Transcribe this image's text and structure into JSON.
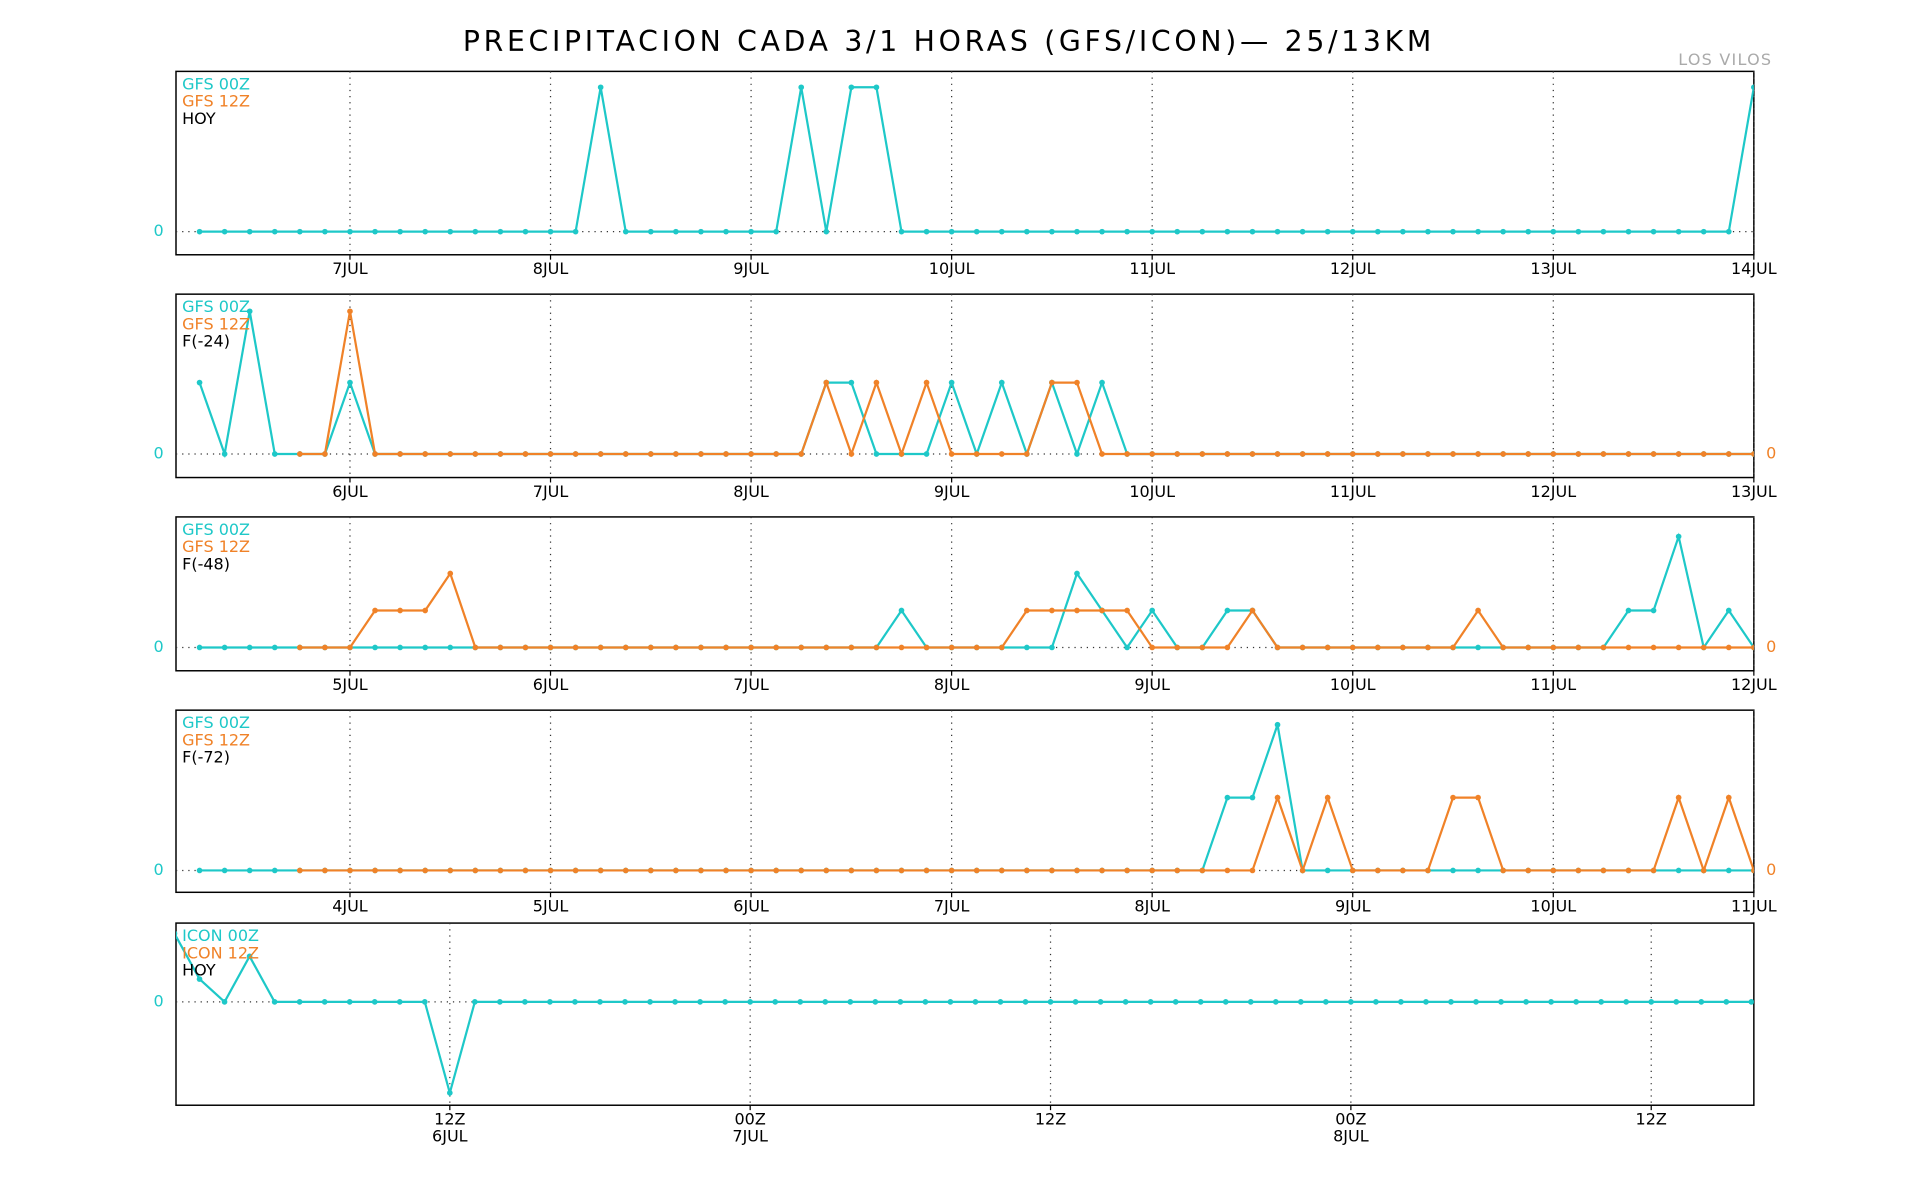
{
  "title": "PRECIPITACION CADA 3/1 HORAS (GFS/ICON)— 25/13KM",
  "subtitle": "LOS VILOS",
  "chart_data": [
    {
      "type": "line",
      "label": "HOY",
      "xlim": [
        -0.94,
        62
      ],
      "ylim": [
        -0.16,
        1.11
      ],
      "yticks": [
        0
      ],
      "xticks": [
        {
          "value": 6,
          "label": "7JUL"
        },
        {
          "value": 14,
          "label": "8JUL"
        },
        {
          "value": 22,
          "label": "9JUL"
        },
        {
          "value": 30,
          "label": "10JUL"
        },
        {
          "value": 38,
          "label": "11JUL"
        },
        {
          "value": 46,
          "label": "12JUL"
        },
        {
          "value": 54,
          "label": "13JUL"
        },
        {
          "value": 62,
          "label": "14JUL"
        }
      ],
      "grid": true,
      "series": [
        {
          "name": "GFS 00Z",
          "color": "#1ec8c8",
          "values": [
            0,
            0,
            0,
            0,
            0,
            0,
            0,
            0,
            0,
            0,
            0,
            0,
            0,
            0,
            0,
            0,
            1,
            0,
            0,
            0,
            0,
            0,
            0,
            0,
            1,
            0,
            1,
            1,
            0,
            0,
            0,
            0,
            0,
            0,
            0,
            0,
            0,
            0,
            0,
            0,
            0,
            0,
            0,
            0,
            0,
            0,
            0,
            0,
            0,
            0,
            0,
            0,
            0,
            0,
            0,
            0,
            0,
            0,
            0,
            0,
            0,
            0,
            1
          ]
        },
        {
          "name": "GFS 12Z",
          "color": "#f08228",
          "values": [
            null,
            null,
            null,
            null,
            null,
            null,
            null,
            null,
            null,
            null,
            null,
            null,
            null,
            null,
            null,
            null,
            null,
            null,
            null,
            null,
            null,
            null,
            null,
            null,
            null,
            null,
            null,
            null,
            null,
            null,
            null,
            null,
            null,
            null,
            null,
            null,
            null,
            null,
            null,
            null,
            null,
            null,
            null,
            null,
            null,
            null,
            null,
            null,
            null,
            null,
            null,
            null,
            null,
            null,
            null,
            null,
            null,
            null,
            null,
            null,
            null,
            null,
            null
          ]
        }
      ]
    },
    {
      "type": "line",
      "label": "F(-24)",
      "xlim": [
        -0.94,
        62
      ],
      "ylim": [
        -0.33,
        2.24
      ],
      "yticks": [
        0
      ],
      "y2lim": [
        -0.33,
        2.24
      ],
      "y2ticks": [
        0
      ],
      "xticks": [
        {
          "value": 6,
          "label": "6JUL"
        },
        {
          "value": 14,
          "label": "7JUL"
        },
        {
          "value": 22,
          "label": "8JUL"
        },
        {
          "value": 30,
          "label": "9JUL"
        },
        {
          "value": 38,
          "label": "10JUL"
        },
        {
          "value": 46,
          "label": "11JUL"
        },
        {
          "value": 54,
          "label": "12JUL"
        },
        {
          "value": 62,
          "label": "13JUL"
        }
      ],
      "grid": true,
      "series": [
        {
          "name": "GFS 00Z",
          "color": "#1ec8c8",
          "values": [
            1,
            0,
            2,
            0,
            0,
            0,
            1,
            0,
            0,
            0,
            0,
            0,
            0,
            0,
            0,
            0,
            0,
            0,
            0,
            0,
            0,
            0,
            0,
            0,
            0,
            1,
            1,
            0,
            0,
            0,
            1,
            0,
            1,
            0,
            1,
            0,
            1,
            0,
            0,
            0,
            0,
            0,
            0,
            0,
            0,
            0,
            0,
            0,
            0,
            0,
            0,
            0,
            0,
            0,
            0,
            0,
            0,
            0,
            0,
            0,
            0,
            0,
            0
          ]
        },
        {
          "name": "GFS 12Z",
          "color": "#f08228",
          "axis": "y2",
          "values": [
            null,
            null,
            null,
            null,
            0,
            0,
            2,
            0,
            0,
            0,
            0,
            0,
            0,
            0,
            0,
            0,
            0,
            0,
            0,
            0,
            0,
            0,
            0,
            0,
            0,
            1,
            0,
            1,
            0,
            1,
            0,
            0,
            0,
            0,
            1,
            1,
            0,
            0,
            0,
            0,
            0,
            0,
            0,
            0,
            0,
            0,
            0,
            0,
            0,
            0,
            0,
            0,
            0,
            0,
            0,
            0,
            0,
            0,
            0,
            0,
            0,
            0,
            0
          ]
        }
      ]
    },
    {
      "type": "line",
      "label": "F(-48)",
      "xlim": [
        -0.94,
        62
      ],
      "ylim": [
        -0.63,
        3.53
      ],
      "yticks": [
        0
      ],
      "y2lim": [
        -0.63,
        3.53
      ],
      "y2ticks": [
        0
      ],
      "xticks": [
        {
          "value": 6,
          "label": "5JUL"
        },
        {
          "value": 14,
          "label": "6JUL"
        },
        {
          "value": 22,
          "label": "7JUL"
        },
        {
          "value": 30,
          "label": "8JUL"
        },
        {
          "value": 38,
          "label": "9JUL"
        },
        {
          "value": 46,
          "label": "10JUL"
        },
        {
          "value": 54,
          "label": "11JUL"
        },
        {
          "value": 62,
          "label": "12JUL"
        }
      ],
      "grid": true,
      "series": [
        {
          "name": "GFS 00Z",
          "color": "#1ec8c8",
          "values": [
            0,
            0,
            0,
            0,
            0,
            0,
            0,
            0,
            0,
            0,
            0,
            0,
            0,
            0,
            0,
            0,
            0,
            0,
            0,
            0,
            0,
            0,
            0,
            0,
            0,
            0,
            0,
            0,
            1,
            0,
            0,
            0,
            0,
            0,
            0,
            2,
            1,
            0,
            1,
            0,
            0,
            1,
            1,
            0,
            0,
            0,
            0,
            0,
            0,
            0,
            0,
            0,
            0,
            0,
            0,
            0,
            0,
            1,
            1,
            3,
            0,
            1,
            0
          ]
        },
        {
          "name": "GFS 12Z",
          "color": "#f08228",
          "axis": "y2",
          "values": [
            null,
            null,
            null,
            null,
            0,
            0,
            0,
            1,
            1,
            1,
            2,
            0,
            0,
            0,
            0,
            0,
            0,
            0,
            0,
            0,
            0,
            0,
            0,
            0,
            0,
            0,
            0,
            0,
            0,
            0,
            0,
            0,
            0,
            1,
            1,
            1,
            1,
            1,
            0,
            0,
            0,
            0,
            1,
            0,
            0,
            0,
            0,
            0,
            0,
            0,
            0,
            1,
            0,
            0,
            0,
            0,
            0,
            0,
            0,
            0,
            0,
            0,
            0
          ]
        }
      ]
    },
    {
      "type": "line",
      "label": "F(-72)",
      "xlim": [
        -0.94,
        62
      ],
      "ylim": [
        -0.3,
        2.2
      ],
      "yticks": [
        0
      ],
      "y2lim": [
        -0.3,
        2.2
      ],
      "y2ticks": [
        0
      ],
      "xticks": [
        {
          "value": 6,
          "label": "4JUL"
        },
        {
          "value": 14,
          "label": "5JUL"
        },
        {
          "value": 22,
          "label": "6JUL"
        },
        {
          "value": 30,
          "label": "7JUL"
        },
        {
          "value": 38,
          "label": "8JUL"
        },
        {
          "value": 46,
          "label": "9JUL"
        },
        {
          "value": 54,
          "label": "10JUL"
        },
        {
          "value": 62,
          "label": "11JUL"
        }
      ],
      "grid": true,
      "series": [
        {
          "name": "GFS 00Z",
          "color": "#1ec8c8",
          "values": [
            0,
            0,
            0,
            0,
            0,
            0,
            0,
            0,
            0,
            0,
            0,
            0,
            0,
            0,
            0,
            0,
            0,
            0,
            0,
            0,
            0,
            0,
            0,
            0,
            0,
            0,
            0,
            0,
            0,
            0,
            0,
            0,
            0,
            0,
            0,
            0,
            0,
            0,
            0,
            0,
            0,
            1,
            1,
            2,
            0,
            0,
            0,
            0,
            0,
            0,
            0,
            0,
            0,
            0,
            0,
            0,
            0,
            0,
            0,
            0,
            0,
            0,
            0
          ]
        },
        {
          "name": "GFS 12Z",
          "color": "#f08228",
          "axis": "y2",
          "values": [
            null,
            null,
            null,
            null,
            0,
            0,
            0,
            0,
            0,
            0,
            0,
            0,
            0,
            0,
            0,
            0,
            0,
            0,
            0,
            0,
            0,
            0,
            0,
            0,
            0,
            0,
            0,
            0,
            0,
            0,
            0,
            0,
            0,
            0,
            0,
            0,
            0,
            0,
            0,
            0,
            0,
            0,
            0,
            1,
            0,
            1,
            0,
            0,
            0,
            0,
            1,
            1,
            0,
            0,
            0,
            0,
            0,
            0,
            0,
            1,
            0,
            1,
            0
          ]
        }
      ]
    },
    {
      "type": "line",
      "label": "HOY",
      "xlim": [
        0.06,
        63.1
      ],
      "ylim": [
        -2.27,
        1.73
      ],
      "yticks": [
        0
      ],
      "xticks": [
        {
          "value": 11,
          "label": "12Z"
        },
        {
          "value": 23,
          "label": "00Z"
        },
        {
          "value": 35,
          "label": "12Z"
        },
        {
          "value": 47,
          "label": "00Z"
        },
        {
          "value": 59,
          "label": "12Z"
        }
      ],
      "xtick_dates": [
        "6JUL",
        "7JUL",
        null,
        "8JUL",
        null
      ],
      "grid": true,
      "series": [
        {
          "name": "ICON 00Z",
          "color": "#1ec8c8",
          "values": [
            1.5,
            0.5,
            0,
            1,
            0,
            0,
            0,
            0,
            0,
            0,
            0,
            -2,
            0,
            0,
            0,
            0,
            0,
            0,
            0,
            0,
            0,
            0,
            0,
            0,
            0,
            0,
            0,
            0,
            0,
            0,
            0,
            0,
            0,
            0,
            0,
            0,
            0,
            0,
            0,
            0,
            0,
            0,
            0,
            0,
            0,
            0,
            0,
            0,
            0,
            0,
            0,
            0,
            0,
            0,
            0,
            0,
            0,
            0,
            0,
            0,
            0,
            0,
            0,
            0
          ]
        },
        {
          "name": "ICON 12Z",
          "color": "#f08228",
          "values": [
            null,
            null,
            null,
            null,
            null,
            null,
            null,
            null,
            null,
            null,
            null,
            null,
            null,
            null,
            null,
            null,
            null,
            null,
            null,
            null,
            null,
            null,
            null,
            null,
            null,
            null,
            null,
            null,
            null,
            null,
            null,
            null,
            null,
            null,
            null,
            null,
            null,
            null,
            null,
            null,
            null,
            null,
            null,
            null,
            null,
            null,
            null,
            null,
            null,
            null,
            null,
            null,
            null,
            null,
            null,
            null,
            null,
            null,
            null,
            null,
            null,
            null,
            null,
            null
          ]
        }
      ]
    }
  ]
}
